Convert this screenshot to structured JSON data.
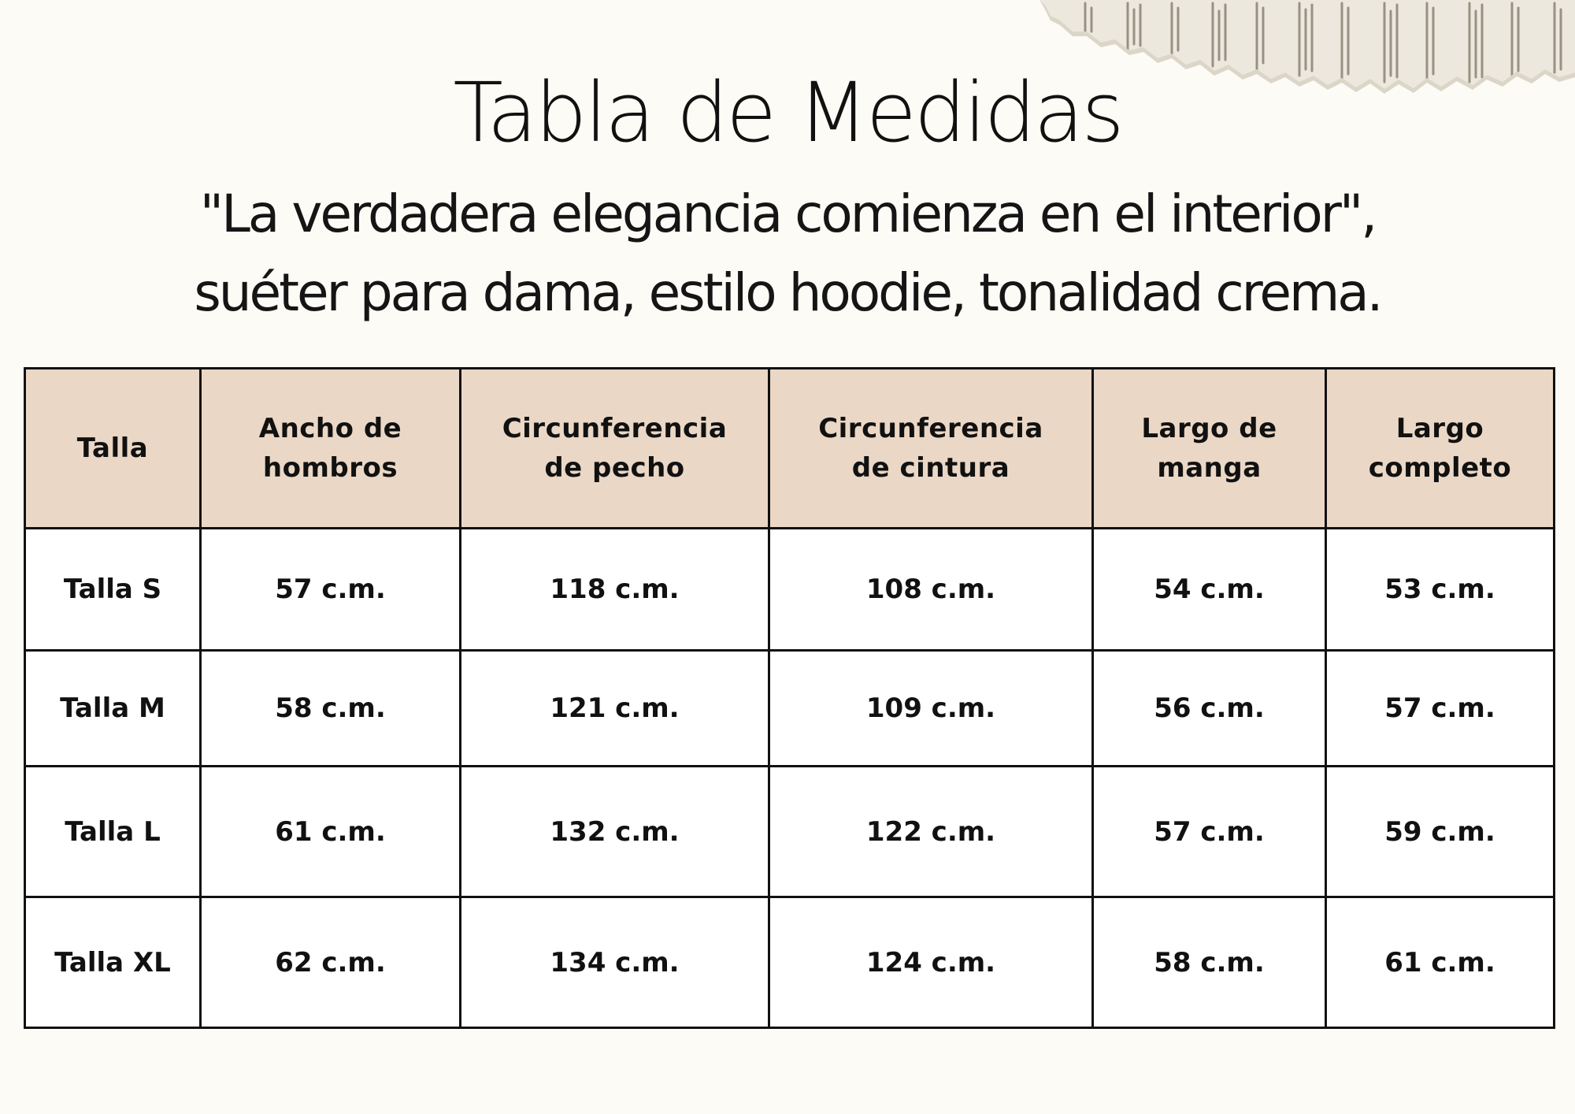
{
  "title": "Tabla de Medidas",
  "subtitle": {
    "line1": "\"La verdadera elegancia comienza en el interior\",",
    "line2": "suéter para dama, estilo hoodie, tonalidad crema."
  },
  "table": {
    "headers": [
      [
        "Talla"
      ],
      [
        "Ancho de",
        "hombros"
      ],
      [
        "Circunferencia",
        "de pecho"
      ],
      [
        "Circunferencia",
        "de cintura"
      ],
      [
        "Largo de",
        "manga"
      ],
      [
        "Largo",
        "completo"
      ]
    ],
    "rows": [
      [
        "Talla S",
        "57 c.m.",
        "118 c.m.",
        "108 c.m.",
        "54 c.m.",
        "53 c.m."
      ],
      [
        "Talla M",
        "58 c.m.",
        "121 c.m.",
        "109 c.m.",
        "56 c.m.",
        "57 c.m."
      ],
      [
        "Talla L",
        "61 c.m.",
        "132 c.m.",
        "122 c.m.",
        "57 c.m.",
        "59 c.m."
      ],
      [
        "Talla XL",
        "62 c.m.",
        "134 c.m.",
        "124 c.m.",
        "58 c.m.",
        "61 c.m."
      ]
    ]
  },
  "colors": {
    "background": "#fdfbf5",
    "header_fill": "#ead7c5",
    "border": "#111111",
    "text": "#111111"
  },
  "decoration": {
    "icon": "torn-newspaper-scrap-icon"
  }
}
